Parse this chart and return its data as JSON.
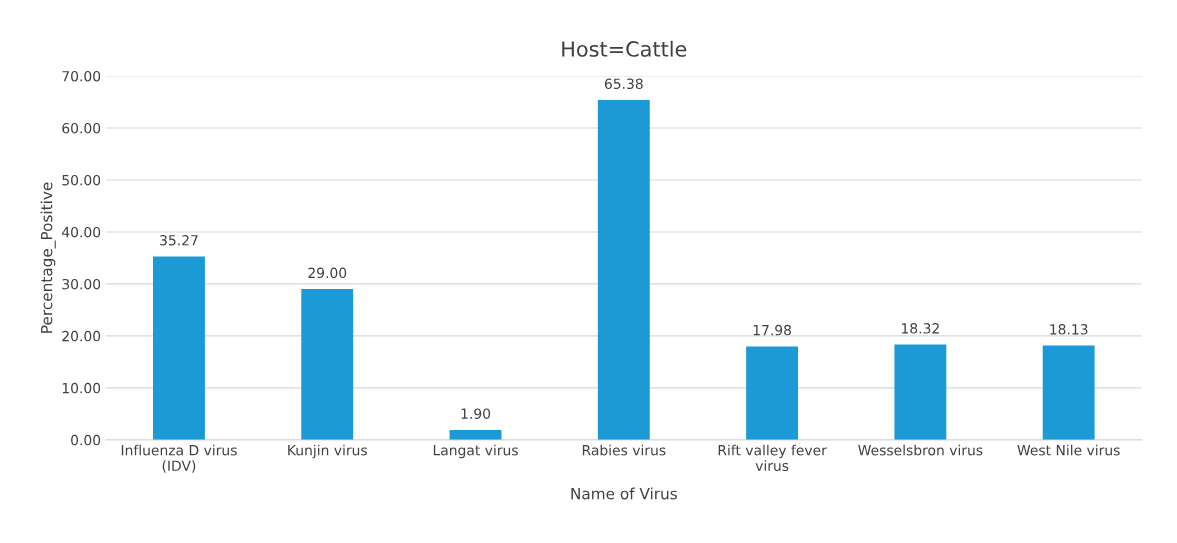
{
  "chart_data": {
    "type": "bar",
    "title": "Host=Cattle",
    "xlabel": "Name of Virus",
    "ylabel": "Percentage_Positive",
    "categories": [
      "Influenza D virus\n(IDV)",
      "Kunjin virus",
      "Langat virus",
      "Rabies virus",
      "Rift valley fever\nvirus",
      "Wesselsbron virus",
      "West Nile virus"
    ],
    "values": [
      35.27,
      29.0,
      1.9,
      65.38,
      17.98,
      18.32,
      18.13
    ],
    "value_labels": [
      "35.27",
      "29.00",
      "1.90",
      "65.38",
      "17.98",
      "18.32",
      "18.13"
    ],
    "color": "#1b9ad6",
    "ylim": [
      0,
      70
    ],
    "yticks": [
      {
        "value": 0,
        "label": "0.00"
      },
      {
        "value": 10,
        "label": "10.00"
      },
      {
        "value": 20,
        "label": "20.00"
      },
      {
        "value": 30,
        "label": "30.00"
      },
      {
        "value": 40,
        "label": "40.00"
      },
      {
        "value": 50,
        "label": "50.00"
      },
      {
        "value": 60,
        "label": "60.00"
      },
      {
        "value": 70,
        "label": "70.00"
      }
    ],
    "grid": "y",
    "legend": false
  }
}
